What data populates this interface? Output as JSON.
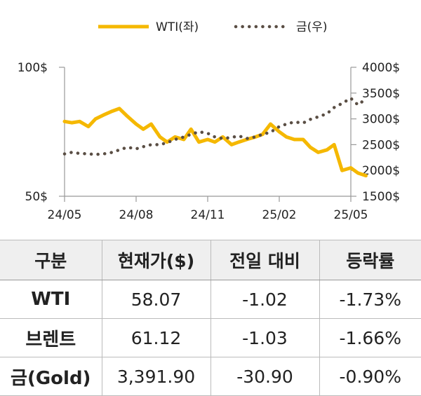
{
  "chart_data": {
    "type": "line",
    "legend": {
      "placement": "top-center",
      "entries": [
        "WTI(좌)",
        "금(우)"
      ]
    },
    "x_ticks": [
      "24/05",
      "24/08",
      "24/11",
      "25/02",
      "25/05"
    ],
    "y_left": {
      "ticks": [
        "100$",
        "50$"
      ],
      "range": [
        50,
        100
      ]
    },
    "y_right": {
      "ticks": [
        "4000$",
        "3500$",
        "3000$",
        "2500$",
        "2000$",
        "1500$"
      ],
      "range": [
        1500,
        4000
      ]
    },
    "x_range": [
      "2024-05",
      "2025-05"
    ],
    "grid": false,
    "colors": {
      "wti": "#f5b800",
      "gold": "#5a4e44"
    },
    "series": [
      {
        "name": "WTI(좌)",
        "axis": "left",
        "style": "solid",
        "x": [
          "2024-05-01",
          "2024-05-10",
          "2024-05-20",
          "2024-06-01",
          "2024-06-10",
          "2024-06-20",
          "2024-07-01",
          "2024-07-10",
          "2024-07-20",
          "2024-08-01",
          "2024-08-10",
          "2024-08-20",
          "2024-09-01",
          "2024-09-10",
          "2024-09-20",
          "2024-10-01",
          "2024-10-10",
          "2024-10-20",
          "2024-11-01",
          "2024-11-10",
          "2024-11-20",
          "2024-12-01",
          "2024-12-10",
          "2024-12-20",
          "2025-01-01",
          "2025-01-10",
          "2025-01-20",
          "2025-02-01",
          "2025-02-10",
          "2025-02-20",
          "2025-03-01",
          "2025-03-10",
          "2025-03-20",
          "2025-04-01",
          "2025-04-10",
          "2025-04-20",
          "2025-05-01",
          "2025-05-10",
          "2025-05-20"
        ],
        "values": [
          79,
          78.5,
          79,
          77,
          80,
          81.5,
          83,
          84,
          81,
          78,
          76,
          78,
          73,
          71,
          73,
          72,
          76,
          71,
          72,
          71,
          73,
          70,
          71,
          72,
          73,
          74,
          78,
          75,
          73,
          72,
          72,
          69,
          67,
          68,
          70,
          60,
          61,
          59,
          58
        ]
      },
      {
        "name": "금(우)",
        "axis": "right",
        "style": "dotted",
        "x": [
          "2024-05-01",
          "2024-05-10",
          "2024-05-20",
          "2024-06-01",
          "2024-06-10",
          "2024-06-20",
          "2024-07-01",
          "2024-07-10",
          "2024-07-20",
          "2024-08-01",
          "2024-08-10",
          "2024-08-20",
          "2024-09-01",
          "2024-09-10",
          "2024-09-20",
          "2024-10-01",
          "2024-10-10",
          "2024-10-20",
          "2024-11-01",
          "2024-11-10",
          "2024-11-20",
          "2024-12-01",
          "2024-12-10",
          "2024-12-20",
          "2025-01-01",
          "2025-01-10",
          "2025-01-20",
          "2025-02-01",
          "2025-02-10",
          "2025-02-20",
          "2025-03-01",
          "2025-03-10",
          "2025-03-20",
          "2025-04-01",
          "2025-04-10",
          "2025-04-20",
          "2025-05-01",
          "2025-05-10",
          "2025-05-20"
        ],
        "values": [
          2320,
          2350,
          2330,
          2320,
          2310,
          2320,
          2350,
          2400,
          2450,
          2420,
          2460,
          2500,
          2500,
          2540,
          2600,
          2650,
          2700,
          2750,
          2720,
          2650,
          2620,
          2640,
          2670,
          2620,
          2650,
          2700,
          2740,
          2850,
          2900,
          2940,
          2920,
          2990,
          3040,
          3100,
          3220,
          3300,
          3400,
          3270,
          3390
        ]
      }
    ]
  },
  "table": {
    "headers": [
      "구분",
      "현재가($)",
      "전일 대비",
      "등락률"
    ],
    "rows": [
      {
        "name": "WTI",
        "price": "58.07",
        "change": "-1.02",
        "rate": "-1.73%"
      },
      {
        "name": "브렌트",
        "price": "61.12",
        "change": "-1.03",
        "rate": "-1.66%"
      },
      {
        "name": "금(Gold)",
        "price": "3,391.90",
        "change": "-30.90",
        "rate": "-0.90%"
      }
    ]
  }
}
